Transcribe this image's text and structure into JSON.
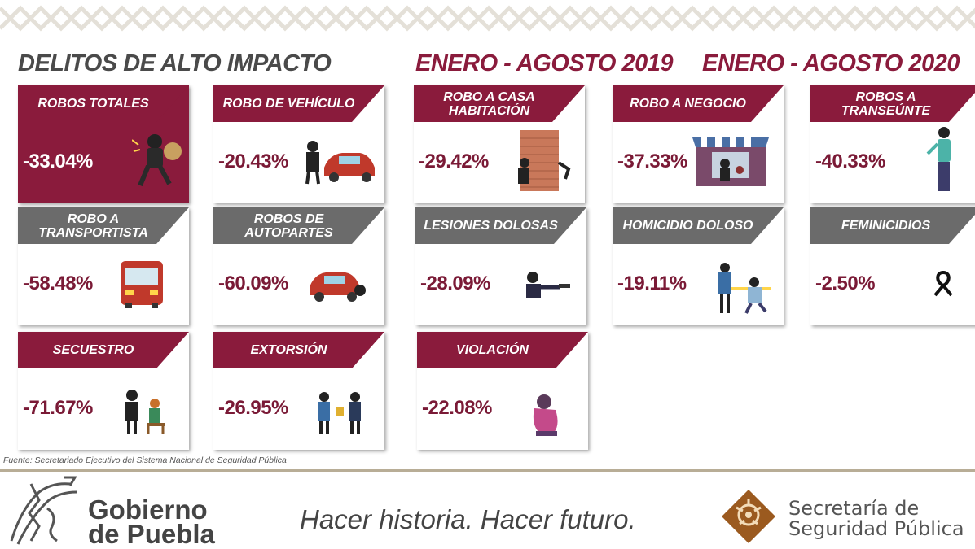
{
  "headings": {
    "left": "DELITOS DE ALTO IMPACTO",
    "middle": "ENERO - AGOSTO 2019",
    "right": "ENERO - AGOSTO 2020"
  },
  "colors": {
    "maroon": "#8a1b3c",
    "gray": "#6b6b6b",
    "gold": "#b8ad96",
    "brown": "#9b5a1f"
  },
  "cards": [
    {
      "label": "ROBOS TOTALES",
      "value": "-33.04%",
      "icon": "thief-running-icon"
    },
    {
      "label": "ROBO DE VEHÍCULO",
      "value": "-20.43%",
      "icon": "car-theft-icon"
    },
    {
      "label": "ROBO A CASA HABITACIÓN",
      "value": "-29.42%",
      "icon": "house-burglary-icon"
    },
    {
      "label": "ROBO A NEGOCIO",
      "value": "-37.33%",
      "icon": "store-robbery-icon"
    },
    {
      "label": "ROBOS A TRANSEÚNTE",
      "value": "-40.33%",
      "icon": "pedestrian-icon"
    },
    {
      "label": "ROBO A TRANSPORTISTA",
      "value": "-58.48%",
      "icon": "bus-icon"
    },
    {
      "label": "ROBOS DE AUTOPARTES",
      "value": "-60.09%",
      "icon": "car-parts-icon"
    },
    {
      "label": "LESIONES DOLOSAS",
      "value": "-28.09%",
      "icon": "gunman-icon"
    },
    {
      "label": "HOMICIDIO DOLOSO",
      "value": "-19.11%",
      "icon": "crime-scene-icon"
    },
    {
      "label": "FEMINICIDIOS",
      "value": "-2.50%",
      "icon": "black-ribbon-icon"
    },
    {
      "label": "SECUESTRO",
      "value": "-71.67%",
      "icon": "kidnapping-icon"
    },
    {
      "label": "EXTORSIÓN",
      "value": "-26.95%",
      "icon": "extortion-icon"
    },
    {
      "label": "VIOLACIÓN",
      "value": "-22.08%",
      "icon": "victim-icon"
    }
  ],
  "source": "Fuente: Secretariado Ejecutivo del Sistema Nacional de Seguridad Pública",
  "footer": {
    "gov_line1": "Gobierno",
    "gov_line2": "de Puebla",
    "slogan": "Hacer historia. Hacer futuro.",
    "sec_line1": "Secretaría de",
    "sec_line2": "Seguridad Pública"
  }
}
